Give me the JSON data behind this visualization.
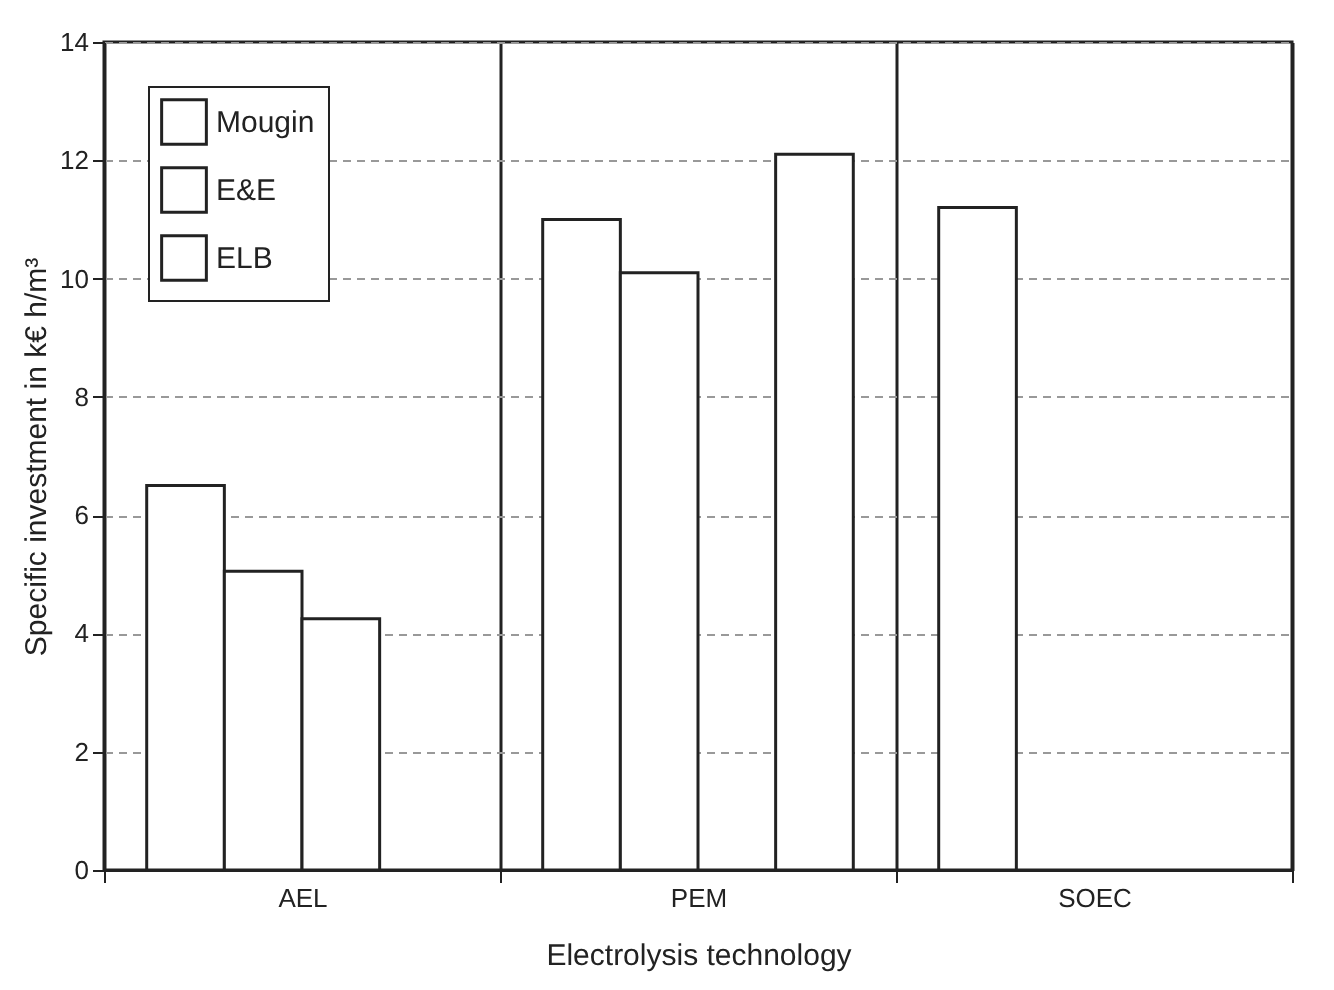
{
  "chart_data": {
    "type": "bar",
    "xlabel": "Electrolysis technology",
    "ylabel": "Specific investment in k€ h/m³",
    "categories": [
      "AEL",
      "PEM",
      "SOEC"
    ],
    "series": [
      {
        "name": "Mougin",
        "color": "#ffffff",
        "values": [
          6.5,
          11.0,
          11.2
        ]
      },
      {
        "name": "E&E",
        "color": "#ffffff",
        "values": [
          5.05,
          10.1,
          null
        ]
      },
      {
        "name": "ELB",
        "color": "#ffffff",
        "values": [
          4.25,
          null,
          null
        ]
      },
      {
        "color": "#ffffff",
        "values": [
          null,
          12.1,
          null
        ]
      }
    ],
    "ylim": [
      0,
      14
    ],
    "yticks": [
      0,
      2,
      4,
      6,
      8,
      10,
      12,
      14
    ],
    "grid": "y",
    "legend": "top left"
  }
}
